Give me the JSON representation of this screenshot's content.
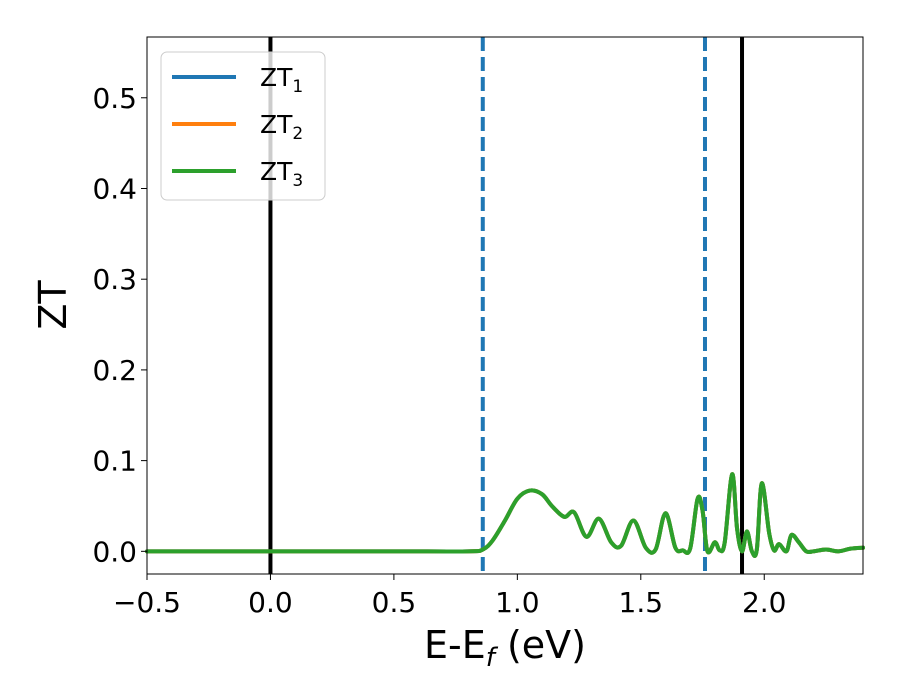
{
  "chart_data": {
    "type": "line",
    "xlabel": {
      "main": "E-E",
      "sub": "f",
      "suffix": " (eV)"
    },
    "ylabel": "ZT",
    "xlim": [
      -0.5,
      2.4
    ],
    "ylim": [
      -0.025,
      0.567
    ],
    "xticks": [
      -0.5,
      0.0,
      0.5,
      1.0,
      1.5,
      2.0
    ],
    "xtick_labels": [
      "−0.5",
      "0.0",
      "0.5",
      "1.0",
      "1.5",
      "2.0"
    ],
    "yticks": [
      0.0,
      0.1,
      0.2,
      0.3,
      0.4,
      0.5
    ],
    "ytick_labels": [
      "0.0",
      "0.1",
      "0.2",
      "0.3",
      "0.4",
      "0.5"
    ],
    "grid": false,
    "legend_position": "top-left",
    "series": [
      {
        "name": "ZT",
        "sub": "1",
        "color": "#1f77b4"
      },
      {
        "name": "ZT",
        "sub": "2",
        "color": "#ff7f0e"
      },
      {
        "name": "ZT",
        "sub": "3",
        "color": "#2ca02c"
      }
    ],
    "curve": {
      "note_series_overlap": "all three series coincide; ZT3 drawn on top",
      "x": [
        -0.5,
        0.0,
        0.5,
        0.8,
        0.86,
        0.9,
        0.95,
        1.0,
        1.05,
        1.1,
        1.14,
        1.19,
        1.23,
        1.28,
        1.33,
        1.38,
        1.42,
        1.47,
        1.52,
        1.56,
        1.6,
        1.64,
        1.67,
        1.7,
        1.73,
        1.75,
        1.77,
        1.8,
        1.82,
        1.84,
        1.87,
        1.89,
        1.91,
        1.93,
        1.95,
        1.97,
        1.99,
        2.02,
        2.04,
        2.06,
        2.09,
        2.11,
        2.14,
        2.17,
        2.2,
        2.25,
        2.3,
        2.35,
        2.4
      ],
      "y": [
        0.0,
        0.0,
        0.0,
        0.0,
        0.002,
        0.012,
        0.034,
        0.058,
        0.067,
        0.063,
        0.05,
        0.038,
        0.043,
        0.016,
        0.036,
        0.01,
        0.006,
        0.034,
        0.004,
        0.002,
        0.042,
        0.004,
        0.001,
        0.003,
        0.058,
        0.045,
        0.0,
        0.01,
        0.001,
        0.01,
        0.085,
        0.025,
        0.0,
        0.022,
        0.0,
        0.002,
        0.075,
        0.02,
        0.001,
        0.008,
        0.0,
        0.018,
        0.01,
        0.0,
        0.0,
        0.002,
        0.0,
        0.003,
        0.004
      ]
    },
    "vlines": [
      {
        "x": 0.0,
        "style": "solid",
        "color": "#000000"
      },
      {
        "x": 0.86,
        "style": "dashed",
        "color": "#1f77b4"
      },
      {
        "x": 1.76,
        "style": "dashed",
        "color": "#1f77b4"
      },
      {
        "x": 1.91,
        "style": "solid",
        "color": "#000000"
      }
    ]
  }
}
